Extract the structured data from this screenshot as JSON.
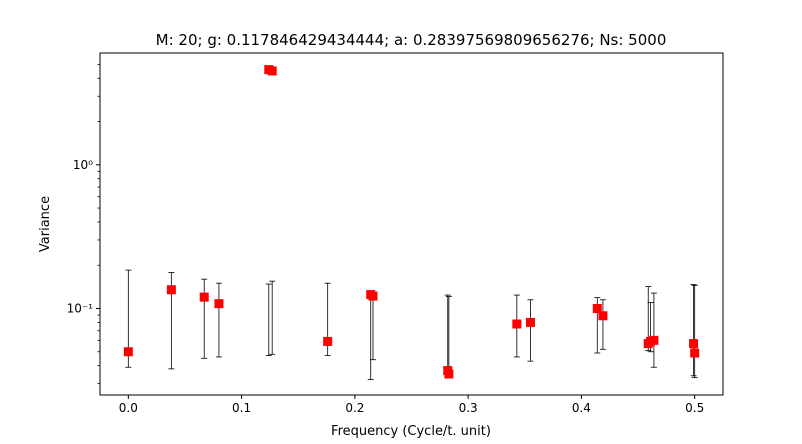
{
  "chart_data": {
    "type": "scatter",
    "title": "M: 20; g: 0.117846429434444; a: 0.28397569809656276; Ns: 5000",
    "xlabel": "Frequency (Cycle/t. unit)",
    "ylabel": "Variance",
    "xscale": "linear",
    "yscale": "log",
    "xlim": [
      -0.025,
      0.525
    ],
    "ylim": [
      0.025,
      6.0
    ],
    "x_ticks": [
      0.0,
      0.1,
      0.2,
      0.3,
      0.4,
      0.5
    ],
    "x_tick_labels": [
      "0.0",
      "0.1",
      "0.2",
      "0.3",
      "0.4",
      "0.5"
    ],
    "y_ticks": [
      0.1,
      1.0
    ],
    "y_tick_labels": [
      "10⁻¹",
      "10⁰"
    ],
    "grid": false,
    "legend": "none",
    "marker": "square",
    "marker_color": "#ff0000",
    "errorbar_color": "#000000",
    "points": [
      {
        "x": 0.0,
        "y": 0.05,
        "lo": 0.039,
        "hi": 0.185
      },
      {
        "x": 0.038,
        "y": 0.135,
        "lo": 0.038,
        "hi": 0.178
      },
      {
        "x": 0.067,
        "y": 0.12,
        "lo": 0.045,
        "hi": 0.16
      },
      {
        "x": 0.08,
        "y": 0.108,
        "lo": 0.046,
        "hi": 0.15
      },
      {
        "x": 0.124,
        "y": 4.6,
        "lo": 0.047,
        "hi": 0.148
      },
      {
        "x": 0.127,
        "y": 4.5,
        "lo": 0.048,
        "hi": 0.155
      },
      {
        "x": 0.176,
        "y": 0.059,
        "lo": 0.047,
        "hi": 0.15
      },
      {
        "x": 0.214,
        "y": 0.125,
        "lo": 0.032,
        "hi": 0.12
      },
      {
        "x": 0.216,
        "y": 0.122,
        "lo": 0.044,
        "hi": 0.115
      },
      {
        "x": 0.282,
        "y": 0.037,
        "lo": 0.034,
        "hi": 0.124
      },
      {
        "x": 0.283,
        "y": 0.035,
        "lo": 0.035,
        "hi": 0.121
      },
      {
        "x": 0.343,
        "y": 0.078,
        "lo": 0.046,
        "hi": 0.124
      },
      {
        "x": 0.355,
        "y": 0.08,
        "lo": 0.043,
        "hi": 0.115
      },
      {
        "x": 0.414,
        "y": 0.1,
        "lo": 0.049,
        "hi": 0.119
      },
      {
        "x": 0.419,
        "y": 0.089,
        "lo": 0.052,
        "hi": 0.115
      },
      {
        "x": 0.459,
        "y": 0.057,
        "lo": 0.051,
        "hi": 0.142
      },
      {
        "x": 0.461,
        "y": 0.059,
        "lo": 0.05,
        "hi": 0.11
      },
      {
        "x": 0.464,
        "y": 0.06,
        "lo": 0.039,
        "hi": 0.128
      },
      {
        "x": 0.499,
        "y": 0.057,
        "lo": 0.034,
        "hi": 0.147
      },
      {
        "x": 0.5,
        "y": 0.049,
        "lo": 0.033,
        "hi": 0.145
      }
    ]
  }
}
